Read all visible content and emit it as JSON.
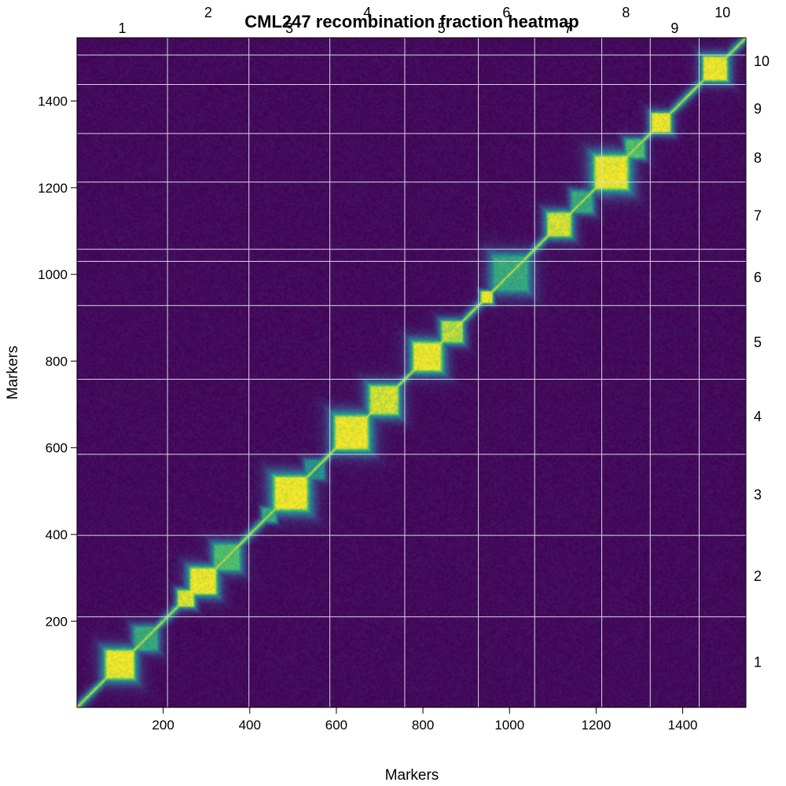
{
  "chart_data": {
    "type": "heatmap",
    "title": "CML247 recombination fraction heatmap",
    "xlabel": "Markers",
    "ylabel": "Markers",
    "xlim": [
      1,
      1546
    ],
    "ylim": [
      1,
      1546
    ],
    "x_ticks": [
      "200",
      "400",
      "600",
      "800",
      "1000",
      "1200",
      "1400"
    ],
    "y_ticks": [
      "200",
      "400",
      "600",
      "800",
      "1000",
      "1200",
      "1400"
    ],
    "tick_values": [
      200,
      400,
      600,
      800,
      1000,
      1200,
      1400
    ],
    "chromosome_boundaries": [
      210,
      398,
      585,
      758,
      928,
      1058,
      1213,
      1325,
      1438
    ],
    "extra_horizontal_lines": [
      1030,
      1506
    ],
    "chromosomes": [
      {
        "label": "1",
        "start": 1,
        "end": 210,
        "blocks": [
          [
            70,
            130,
            1.0
          ],
          [
            135,
            185,
            0.6
          ]
        ]
      },
      {
        "label": "2",
        "start": 210,
        "end": 398,
        "blocks": [
          [
            235,
            270,
            0.95
          ],
          [
            265,
            320,
            1.0
          ],
          [
            320,
            375,
            0.7
          ]
        ]
      },
      {
        "label": "3",
        "start": 398,
        "end": 585,
        "blocks": [
          [
            430,
            460,
            0.6
          ],
          [
            460,
            530,
            1.0
          ],
          [
            530,
            570,
            0.5
          ]
        ]
      },
      {
        "label": "4",
        "start": 585,
        "end": 758,
        "blocks": [
          [
            600,
            670,
            1.0
          ],
          [
            680,
            740,
            0.95
          ]
        ]
      },
      {
        "label": "5",
        "start": 758,
        "end": 928,
        "blocks": [
          [
            780,
            840,
            1.0
          ],
          [
            845,
            890,
            0.9
          ]
        ]
      },
      {
        "label": "6",
        "start": 928,
        "end": 1058,
        "blocks": [
          [
            935,
            960,
            1.0
          ],
          [
            965,
            1040,
            0.6
          ]
        ]
      },
      {
        "label": "7",
        "start": 1058,
        "end": 1213,
        "blocks": [
          [
            1090,
            1140,
            0.95
          ],
          [
            1145,
            1190,
            0.6
          ]
        ]
      },
      {
        "label": "8",
        "start": 1213,
        "end": 1325,
        "blocks": [
          [
            1200,
            1270,
            1.0
          ],
          [
            1270,
            1310,
            0.7
          ]
        ]
      },
      {
        "label": "9",
        "start": 1325,
        "end": 1438,
        "blocks": [
          [
            1330,
            1370,
            1.0
          ]
        ]
      },
      {
        "label": "10",
        "start": 1438,
        "end": 1546,
        "blocks": [
          [
            1450,
            1500,
            1.0
          ]
        ]
      }
    ],
    "colormap": [
      "#440154",
      "#3b528b",
      "#21918c",
      "#5ec962",
      "#fde725"
    ],
    "background_color": "#440154",
    "gridline_color": "#d8d8e6",
    "grid": true
  }
}
